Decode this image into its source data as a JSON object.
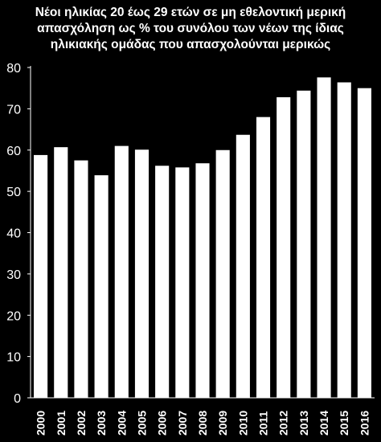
{
  "chart_data": {
    "type": "bar",
    "title_lines": [
      "Νέοι ηλικίας 20 έως 29 ετών σε μη εθελοντική μερική",
      "απασχόληση ως % του συνόλου των νέων της ίδιας",
      "ηλικιακής ομάδας που απασχολούνται μερικώς"
    ],
    "categories": [
      "2000",
      "2001",
      "2002",
      "2003",
      "2004",
      "2005",
      "2006",
      "2007",
      "2008",
      "2009",
      "2010",
      "2011",
      "2012",
      "2013",
      "2014",
      "2015",
      "2016"
    ],
    "values": [
      58.8,
      60.7,
      57.5,
      53.9,
      61.0,
      60.1,
      56.2,
      55.8,
      56.8,
      60.0,
      63.7,
      68.0,
      72.8,
      74.4,
      77.6,
      76.4,
      75.0
    ],
    "ylim": [
      0,
      80
    ],
    "yticks": [
      0,
      10,
      20,
      30,
      40,
      50,
      60,
      70,
      80
    ],
    "bar_color": "#ffffff",
    "background_color": "#000000",
    "grid": false
  }
}
